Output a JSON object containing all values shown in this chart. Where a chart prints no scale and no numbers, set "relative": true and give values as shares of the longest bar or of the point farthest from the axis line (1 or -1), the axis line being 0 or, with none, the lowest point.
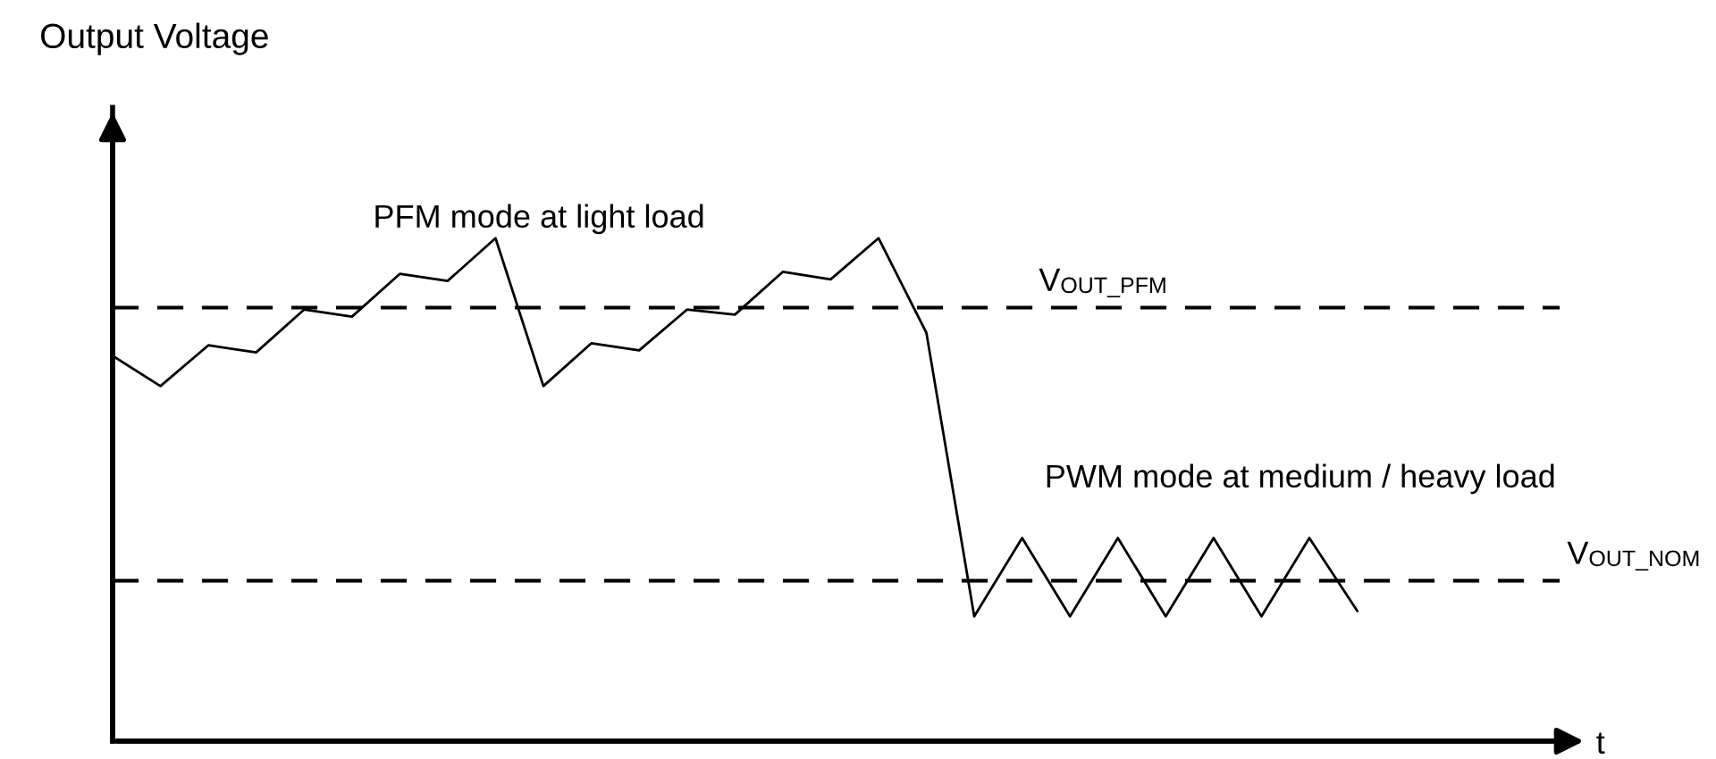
{
  "chart_data": {
    "type": "line",
    "title": "Output Voltage",
    "relative": true,
    "categories": [
      null,
      null,
      null,
      null,
      null,
      null,
      null,
      null,
      null,
      null,
      null,
      null,
      null,
      null,
      null,
      null,
      null,
      null,
      null,
      null,
      null,
      null,
      null,
      null,
      null,
      null,
      null
    ],
    "series": [
      {
        "color": "#000000",
        "values": [
          0.766,
          0.706,
          0.787,
          0.773,
          0.858,
          0.844,
          0.929,
          0.915,
          1,
          0.706,
          0.791,
          0.777,
          0.858,
          0.848,
          0.933,
          0.918,
          1,
          0.812,
          0.248,
          0.404,
          0.248,
          0.404,
          0.248,
          0.404,
          0.248,
          0.404,
          0.259
        ]
      }
    ],
    "ref_lines": [
      {
        "axis": "y",
        "value": 0.862,
        "label": "V$_{OUT_PFM}$",
        "color": "#000000",
        "line_style": "dashed"
      },
      {
        "axis": "y",
        "value": 0.319,
        "label": "V$_{OUT_NOM}$",
        "color": "#000000",
        "line_style": "dashed"
      }
    ],
    "annotations": [
      "PFM mode at light load",
      "PWM mode at medium / heavy load",
      "t"
    ]
  }
}
